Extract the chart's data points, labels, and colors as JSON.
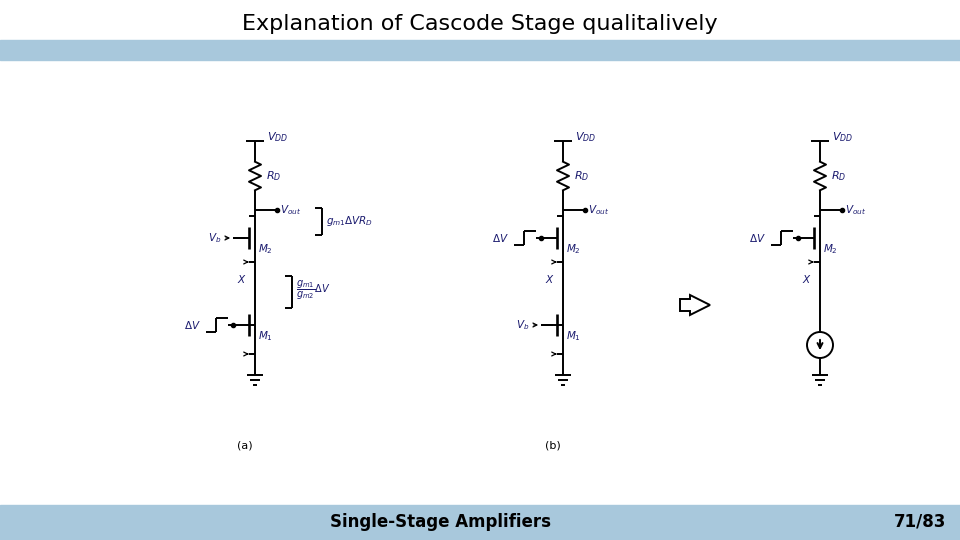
{
  "title": "Explanation of Cascode Stage qualitalively",
  "footer_left": "Single-Stage Amplifiers",
  "footer_right": "71/83",
  "bg_color": "#ffffff",
  "header_bar_color": "#a8c8dc",
  "footer_bar_color": "#a8c8dc",
  "title_fontsize": 16,
  "footer_fontsize": 12,
  "circuit_color": "#000000",
  "label_color": "#1a1a6e",
  "lw": 1.4
}
